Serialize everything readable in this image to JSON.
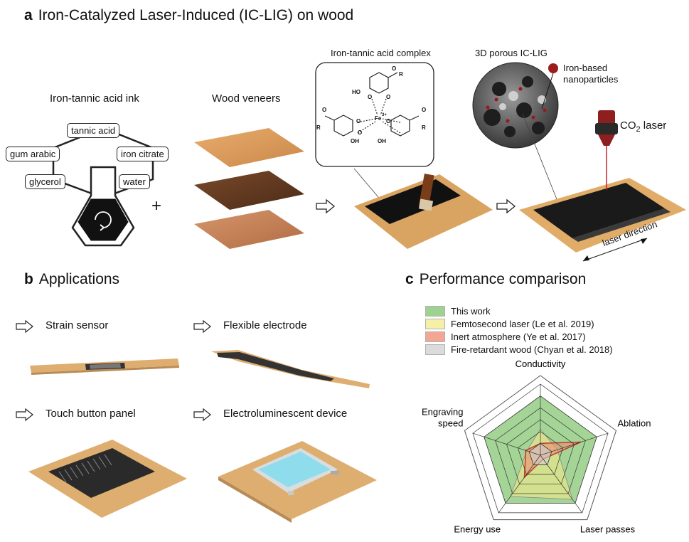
{
  "panel_a": {
    "letter": "a",
    "title": "Iron-Catalyzed Laser-Induced (IC-LIG) on wood",
    "ink_title": "Iron-tannic acid ink",
    "ink_components": [
      "tannic acid",
      "gum arabic",
      "iron citrate",
      "glycerol",
      "water"
    ],
    "plus": "+",
    "veneers_title": "Wood veneers",
    "complex_title": "Iron-tannic acid complex",
    "porous_label": "3D porous IC-LIG",
    "nanoparticles_label_line1": "Iron-based",
    "nanoparticles_label_line2": "nanoparticles",
    "laser_label_prefix": "CO",
    "laser_label_sub": "2",
    "laser_label_suffix": " laser",
    "laser_direction": "laser direction",
    "chem_labels": [
      "HO",
      "O",
      "O",
      "R",
      "O",
      "O",
      "R",
      "O",
      "R",
      "O",
      "O",
      "OH",
      "O",
      "OH",
      "Fe",
      "3+"
    ]
  },
  "panel_b": {
    "letter": "b",
    "title": "Applications",
    "items": [
      "Strain sensor",
      "Flexible electrode",
      "Touch button panel",
      "Electroluminescent device"
    ]
  },
  "panel_c": {
    "letter": "c",
    "title": "Performance comparison"
  },
  "chart_data": {
    "type": "radar",
    "axes": [
      "Conductivity",
      "Ablation",
      "Laser passes",
      "Energy use",
      "Engraving speed"
    ],
    "axis_labels_display": [
      "Conductivity",
      "Ablation",
      "Laser passes",
      "Energy use",
      "Engraving\nspeed"
    ],
    "rings": 6,
    "max": 6,
    "series": [
      {
        "name": "This work",
        "values": [
          5,
          5,
          5,
          5,
          5
        ],
        "color": "#7dc36b"
      },
      {
        "name": "Femtosecond laser (Le et al. 2019)",
        "values": [
          2.2,
          1.5,
          4.6,
          4.3,
          1.2
        ],
        "color": "#f3ea8a"
      },
      {
        "name": "Inert atmosphere (Ye et al. 2017)",
        "values": [
          1.0,
          3.6,
          0.4,
          2.3,
          1.3
        ],
        "color": "#ee8a72"
      },
      {
        "name": "Fire-retardant wood (Chyan et al. 2018)",
        "values": [
          1.0,
          1.0,
          1.0,
          1.0,
          1.0
        ],
        "color": "#cfcfcf"
      }
    ]
  }
}
